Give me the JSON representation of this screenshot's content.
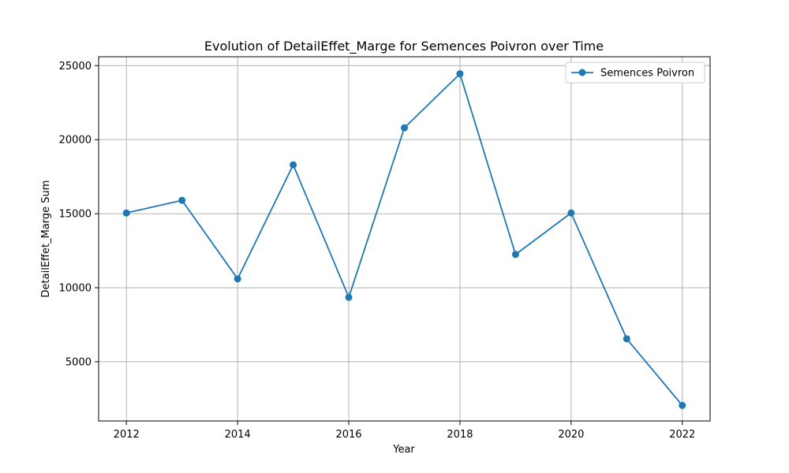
{
  "chart_data": {
    "type": "line",
    "title": "Evolution of DetailEffet_Marge for Semences Poivron over Time",
    "xlabel": "Year",
    "ylabel": "DetailEffet_Marge Sum",
    "x": [
      2012,
      2013,
      2014,
      2015,
      2016,
      2017,
      2018,
      2019,
      2020,
      2021,
      2022
    ],
    "series": [
      {
        "name": "Semences Poivron",
        "color": "#1f77b4",
        "values": [
          15050,
          15900,
          10600,
          18300,
          9350,
          20800,
          24450,
          12250,
          15050,
          6550,
          2050
        ]
      }
    ],
    "xlim": [
      2011.5,
      2022.5
    ],
    "ylim": [
      1000,
      25600
    ],
    "xticks": [
      2012,
      2014,
      2016,
      2018,
      2020,
      2022
    ],
    "yticks": [
      5000,
      10000,
      15000,
      20000,
      25000
    ],
    "grid": true,
    "legend_position": "top-right"
  }
}
